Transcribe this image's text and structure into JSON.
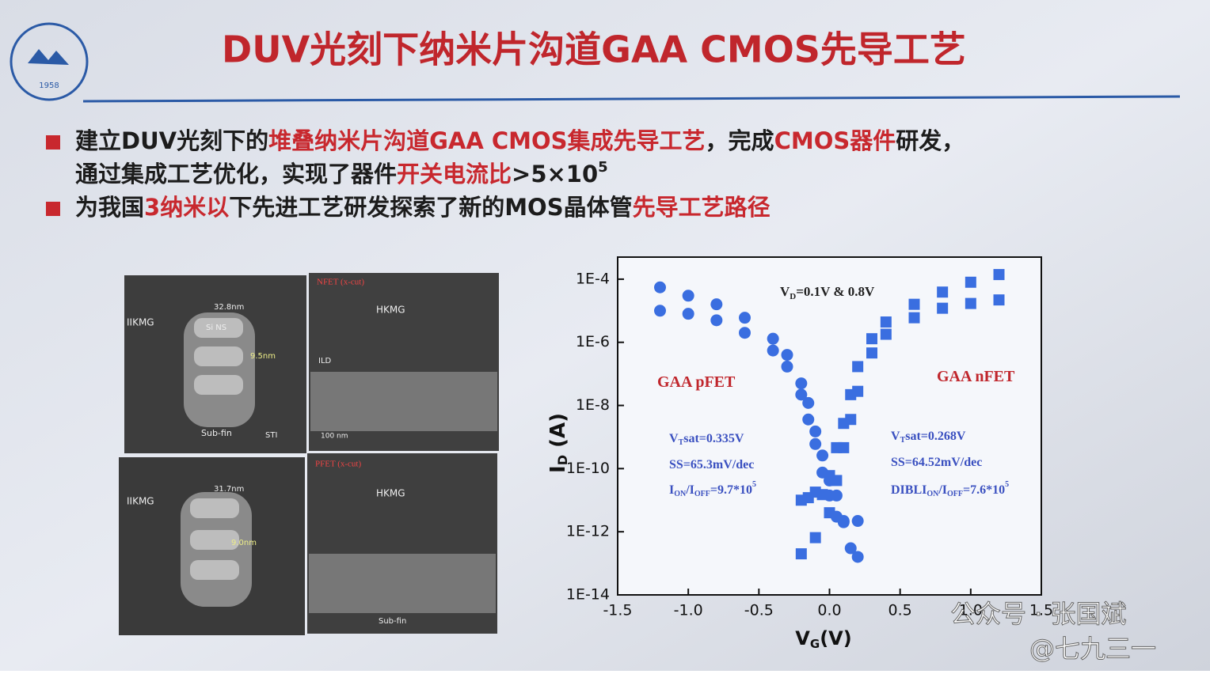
{
  "slide": {
    "title": "DUV光刻下纳米片沟道GAA CMOS先导工艺",
    "logo_text": "1958",
    "highlight_color": "#c8282e",
    "bullets": [
      {
        "lines": [
          [
            {
              "text": "建立DUV光刻下的",
              "highlight": false
            },
            {
              "text": "堆叠纳米片沟道GAA CMOS集成先导工艺",
              "highlight": true
            },
            {
              "text": "，完成",
              "highlight": false
            },
            {
              "text": "CMOS器件",
              "highlight": true
            },
            {
              "text": "研发，",
              "highlight": false
            }
          ],
          [
            {
              "text": "通过集成工艺优化，实现了器件",
              "highlight": false
            },
            {
              "text": "开关电流比",
              "highlight": true
            },
            {
              "text": ">5×10",
              "highlight": false
            },
            {
              "text": "5",
              "highlight": false,
              "sup": true
            }
          ]
        ]
      },
      {
        "lines": [
          [
            {
              "text": "为我国",
              "highlight": false
            },
            {
              "text": "3纳米以",
              "highlight": true
            },
            {
              "text": "下先进工艺研发探索了新的MOS晶体管",
              "highlight": false
            },
            {
              "text": "先导工艺路径",
              "highlight": true
            }
          ]
        ]
      }
    ]
  },
  "images": {
    "labels": [
      "NFET (x-cut)",
      "PFET (x-cut)",
      "HKMG",
      "IIKMG",
      "Si NS",
      "32.8nm",
      "9.5nm",
      "31.7nm",
      "9.0nm",
      "ILD",
      "STI",
      "Sub-fin",
      "100 nm"
    ]
  },
  "watermark": {
    "account": "公众号 · 张国斌",
    "handle": "@七九三一"
  },
  "chart_data": {
    "type": "scatter",
    "xlabel": {
      "parts": [
        "V",
        "G",
        "(V)"
      ]
    },
    "ylabel": {
      "parts": [
        "I",
        "D",
        " (A)"
      ]
    },
    "xlim": [
      -1.5,
      1.5
    ],
    "xticks": [
      -1.5,
      -1.0,
      -0.5,
      0.0,
      0.5,
      1.0,
      1.5
    ],
    "xtick_labels": [
      "-1.5",
      "-1.0",
      "-0.5",
      "0.0",
      "0.5",
      "1.0",
      "1.5"
    ],
    "log_y": true,
    "ylim": [
      1e-14,
      0.0005
    ],
    "yticks": [
      {
        "value": 0.0001,
        "label": "1E-4"
      },
      {
        "value": 1e-06,
        "label": "1E-6"
      },
      {
        "value": 1e-08,
        "label": "1E-8"
      },
      {
        "value": 1e-10,
        "label": "1E-10"
      },
      {
        "value": 1e-12,
        "label": "1E-12"
      },
      {
        "value": 1e-14,
        "label": "1E-14"
      }
    ],
    "annotations": [
      {
        "parts": [
          "V",
          "D",
          "=0.1V & 0.8V"
        ]
      },
      {
        "parts": [
          "GAA pFET"
        ]
      },
      {
        "parts": [
          "GAA nFET"
        ]
      },
      {
        "parts": [
          "V",
          "T",
          "sat=0.335V"
        ]
      },
      {
        "parts": [
          "SS=65.3mV/dec"
        ]
      },
      {
        "parts": [
          "I",
          "ON",
          "/I",
          "OFF",
          "=9.7*10",
          "5"
        ]
      },
      {
        "parts": [
          "V",
          "T",
          "sat=0.268V"
        ]
      },
      {
        "parts": [
          "SS=64.52mV/dec"
        ]
      },
      {
        "parts": [
          "DIBLI",
          "ON",
          "/I",
          "OFF",
          "=7.6*10",
          "5"
        ]
      }
    ],
    "series": [
      {
        "color": "#3a6ee0",
        "marker": "circle",
        "x": [
          -1.2,
          -1.0,
          -0.8,
          -0.6,
          -0.4,
          -0.3,
          -0.2,
          -0.15,
          -0.1,
          -0.05,
          0.0,
          0.05,
          0.1,
          0.15,
          0.2
        ],
        "values": [
          5.5e-05,
          3e-05,
          1.6e-05,
          6e-06,
          1.3e-06,
          4e-07,
          5e-08,
          1.2e-08,
          1.5e-09,
          2.6e-10,
          4.2e-11,
          1.4e-11,
          2.2e-12,
          3e-13,
          1.6e-13
        ]
      },
      {
        "color": "#3a6ee0",
        "marker": "circle",
        "x": [
          -1.2,
          -1.0,
          -0.8,
          -0.6,
          -0.4,
          -0.3,
          -0.2,
          -0.15,
          -0.1,
          -0.05,
          0.0,
          0.05,
          0.1,
          0.2
        ],
        "values": [
          1e-05,
          8e-06,
          5e-06,
          2e-06,
          5.5e-07,
          1.7e-07,
          2.2e-08,
          3.6e-09,
          6e-10,
          7.5e-11,
          1.4e-11,
          3e-12,
          2e-12,
          2.2e-12
        ]
      },
      {
        "color": "#3a6ee0",
        "marker": "square",
        "x": [
          -0.2,
          -0.15,
          -0.1,
          -0.05,
          0.0,
          0.05,
          0.1,
          0.15,
          0.2,
          0.3,
          0.4,
          0.6,
          0.8,
          1.0,
          1.2
        ],
        "values": [
          1e-11,
          1.2e-11,
          1.8e-11,
          1.5e-11,
          6e-11,
          4.6e-10,
          2.7e-09,
          2.2e-08,
          1.7e-07,
          1.3e-06,
          4.4e-06,
          1.6e-05,
          3.9e-05,
          8e-05,
          0.00014
        ]
      },
      {
        "color": "#3a6ee0",
        "marker": "square",
        "x": [
          -0.2,
          -0.1,
          0.0,
          0.05,
          0.1,
          0.15,
          0.2,
          0.3,
          0.4,
          0.6,
          0.8,
          1.0,
          1.2
        ],
        "values": [
          2e-13,
          6.5e-13,
          4e-12,
          4.2e-11,
          4.6e-10,
          3.6e-09,
          2.8e-08,
          4.6e-07,
          1.8e-06,
          6e-06,
          1.2e-05,
          1.7e-05,
          2.2e-05
        ]
      }
    ]
  }
}
